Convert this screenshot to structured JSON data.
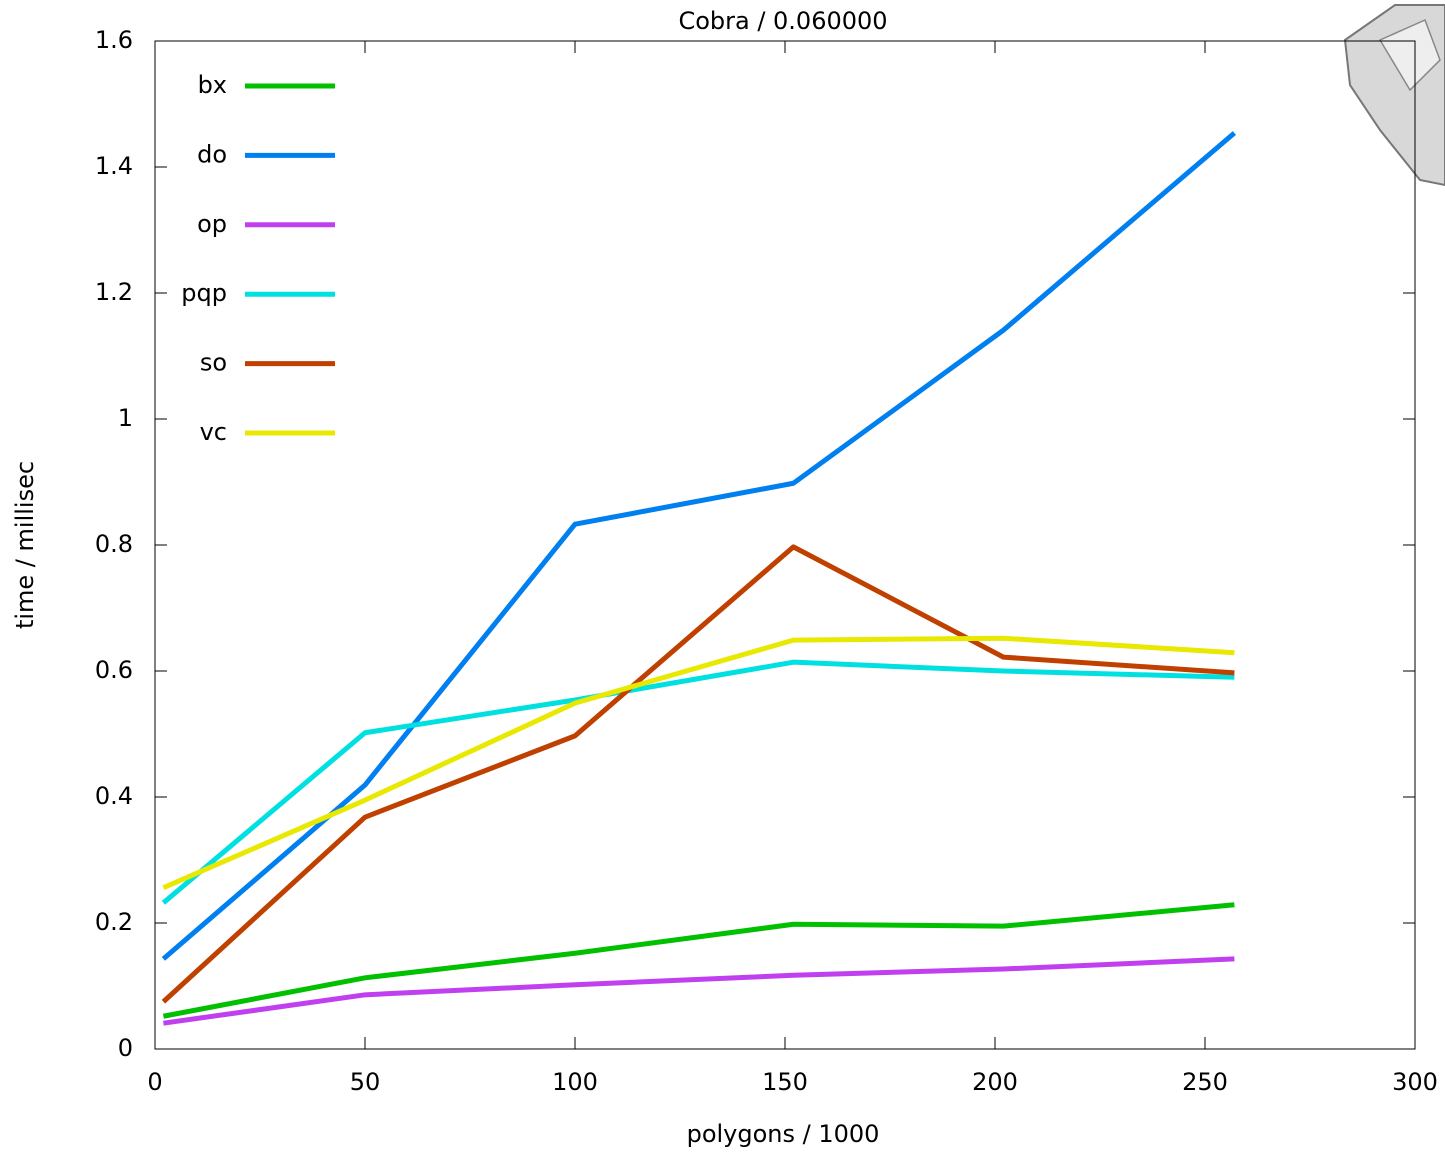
{
  "chart_data": {
    "type": "line",
    "title": "Cobra / 0.060000",
    "x_label": "polygons / 1000",
    "y_label": "time / millisec",
    "x": [
      2,
      50,
      100,
      152,
      202,
      257
    ],
    "series": [
      {
        "name": "bx",
        "color": "#00c000",
        "values": [
          0.052,
          0.113,
          0.152,
          0.198,
          0.195,
          0.229
        ]
      },
      {
        "name": "do",
        "color": "#0080f0",
        "values": [
          0.143,
          0.419,
          0.833,
          0.898,
          1.141,
          1.454
        ]
      },
      {
        "name": "op",
        "color": "#c040f0",
        "values": [
          0.041,
          0.086,
          0.102,
          0.117,
          0.127,
          0.143
        ]
      },
      {
        "name": "pqp",
        "color": "#00e0e0",
        "values": [
          0.232,
          0.502,
          0.554,
          0.614,
          0.6,
          0.59
        ]
      },
      {
        "name": "so",
        "color": "#c04000",
        "values": [
          0.075,
          0.368,
          0.497,
          0.797,
          0.622,
          0.597
        ]
      },
      {
        "name": "vc",
        "color": "#e8e800",
        "values": [
          0.256,
          0.395,
          0.549,
          0.649,
          0.652,
          0.629
        ]
      }
    ],
    "xlim": [
      0,
      300
    ],
    "xticks": [
      0,
      50,
      100,
      150,
      200,
      250,
      300
    ],
    "ylim": [
      0,
      1.6
    ],
    "yticks": [
      0,
      0.2,
      0.4,
      0.6,
      0.8,
      1,
      1.2,
      1.4,
      1.6
    ],
    "legend": "upper-left"
  }
}
